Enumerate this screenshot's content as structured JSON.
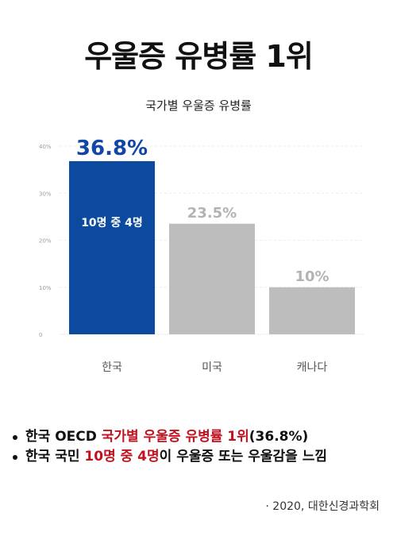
{
  "header": {
    "title": "우울증 유병률 1위"
  },
  "chart_data": {
    "type": "bar",
    "title": "국가별 우울증 유병률",
    "categories": [
      "한국",
      "미국",
      "캐나다"
    ],
    "values": [
      36.8,
      23.5,
      10
    ],
    "value_labels": [
      "36.8%",
      "23.5%",
      "10%"
    ],
    "ylim": [
      0,
      40
    ],
    "yticks": [
      0,
      10,
      20,
      30,
      40
    ],
    "ytick_labels": [
      "0",
      "10%",
      "20%",
      "30%",
      "40%"
    ],
    "inner_label": "10명 중 4명",
    "grid": true,
    "colors": {
      "highlight": "#0b4a9e",
      "default": "#bdbdbd",
      "highlight_label": "#1246a6",
      "default_label": "#b3b3b3"
    }
  },
  "bullets": [
    {
      "parts": [
        {
          "text": "한국 OECD ",
          "hl": false
        },
        {
          "text": "국가별 우울증 유병률 1위",
          "hl": true
        },
        {
          "text": "(36.8%)",
          "hl": false
        }
      ]
    },
    {
      "parts": [
        {
          "text": "한국 국민 ",
          "hl": false
        },
        {
          "text": "10명 중 4명",
          "hl": true
        },
        {
          "text": "이 우울증 또는 우울감을 느낌",
          "hl": false
        }
      ]
    }
  ],
  "source": "· 2020, 대한신경과학회"
}
